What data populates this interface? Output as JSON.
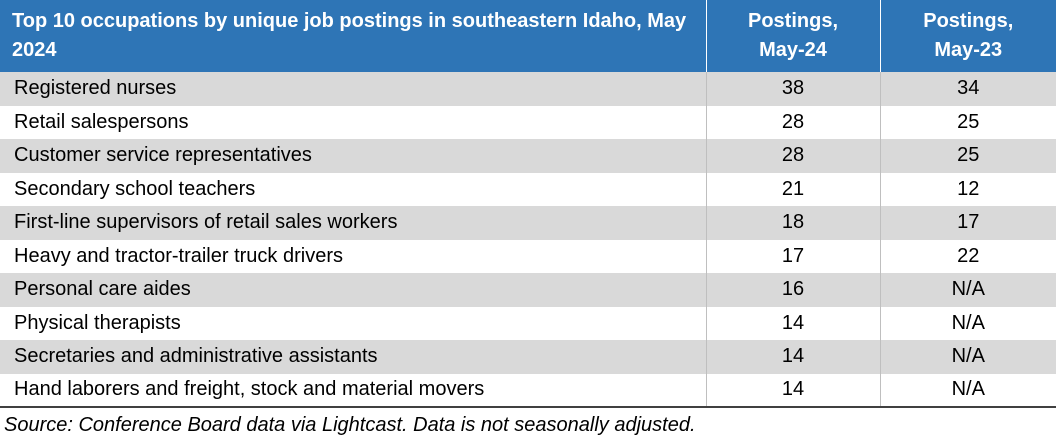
{
  "table": {
    "header": [
      "Top 10 occupations by unique job postings in southeastern Idaho, May 2024",
      "Postings, May-24",
      "Postings, May-23"
    ],
    "rows": [
      [
        "Registered nurses",
        38,
        34
      ],
      [
        "Retail salespersons",
        28,
        25
      ],
      [
        "Customer service representatives",
        28,
        25
      ],
      [
        "Secondary school teachers",
        21,
        12
      ],
      [
        "First-line supervisors of retail sales workers",
        18,
        17
      ],
      [
        "Heavy and tractor-trailer truck drivers",
        17,
        22
      ],
      [
        "Personal care aides",
        16,
        "N/A"
      ],
      [
        "Physical therapists",
        14,
        "N/A"
      ],
      [
        "Secretaries and administrative assistants",
        14,
        "N/A"
      ],
      [
        "Hand laborers and freight, stock and material movers",
        14,
        "N/A"
      ]
    ],
    "source": "Source: Conference Board data via Lightcast. Data is not seasonally adjusted."
  }
}
